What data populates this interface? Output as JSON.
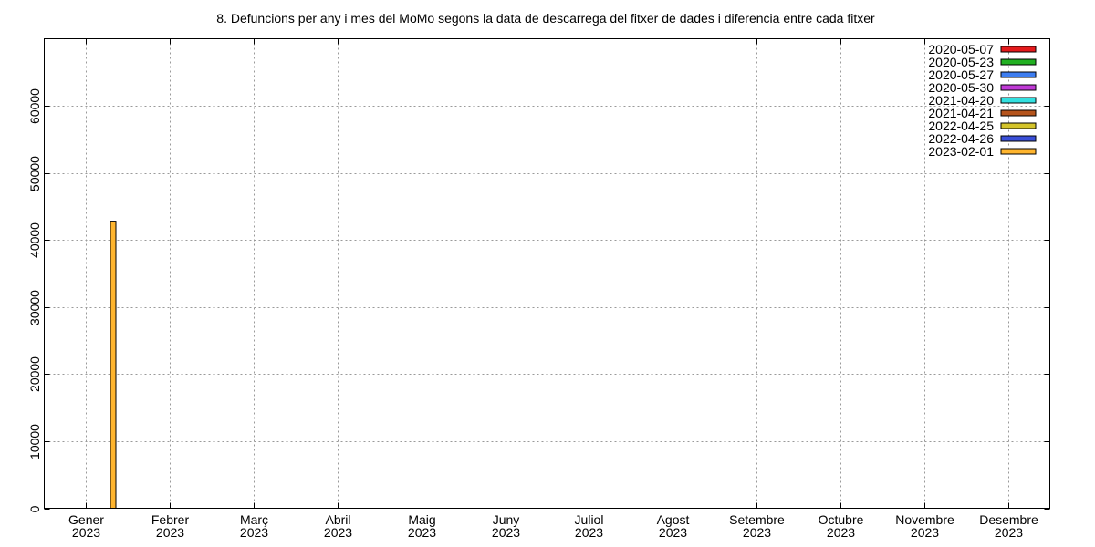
{
  "chart_data": {
    "type": "bar",
    "title": "8. Defuncions per any i mes del MoMo segons la data de descarrega del fitxer de dades i diferencia entre cada fitxer",
    "xlabel": "",
    "ylabel": "",
    "categories": [
      [
        "Gener",
        "2023"
      ],
      [
        "Febrer",
        "2023"
      ],
      [
        "Març",
        "2023"
      ],
      [
        "Abril",
        "2023"
      ],
      [
        "Maig",
        "2023"
      ],
      [
        "Juny",
        "2023"
      ],
      [
        "Juliol",
        "2023"
      ],
      [
        "Agost",
        "2023"
      ],
      [
        "Setembre",
        "2023"
      ],
      [
        "Octubre",
        "2023"
      ],
      [
        "Novembre",
        "2023"
      ],
      [
        "Desembre",
        "2023"
      ]
    ],
    "ylim": [
      0,
      70000
    ],
    "yticks": [
      0,
      10000,
      20000,
      30000,
      40000,
      50000,
      60000
    ],
    "grid": true,
    "legend_position": "top-right",
    "series": [
      {
        "name": "2020-05-07",
        "color": "#e41a1c",
        "values": [
          null,
          null,
          null,
          null,
          null,
          null,
          null,
          null,
          null,
          null,
          null,
          null
        ]
      },
      {
        "name": "2020-05-23",
        "color": "#22b022",
        "values": [
          null,
          null,
          null,
          null,
          null,
          null,
          null,
          null,
          null,
          null,
          null,
          null
        ]
      },
      {
        "name": "2020-05-27",
        "color": "#3d7df0",
        "values": [
          null,
          null,
          null,
          null,
          null,
          null,
          null,
          null,
          null,
          null,
          null,
          null
        ]
      },
      {
        "name": "2020-05-30",
        "color": "#c03ad6",
        "values": [
          null,
          null,
          null,
          null,
          null,
          null,
          null,
          null,
          null,
          null,
          null,
          null
        ]
      },
      {
        "name": "2021-04-20",
        "color": "#33e0e0",
        "values": [
          null,
          null,
          null,
          null,
          null,
          null,
          null,
          null,
          null,
          null,
          null,
          null
        ]
      },
      {
        "name": "2021-04-21",
        "color": "#b5541c",
        "values": [
          null,
          null,
          null,
          null,
          null,
          null,
          null,
          null,
          null,
          null,
          null,
          null
        ]
      },
      {
        "name": "2022-04-25",
        "color": "#d4c42a",
        "values": [
          null,
          null,
          null,
          null,
          null,
          null,
          null,
          null,
          null,
          null,
          null,
          null
        ]
      },
      {
        "name": "2022-04-26",
        "color": "#3a4fd8",
        "values": [
          null,
          null,
          null,
          null,
          null,
          null,
          null,
          null,
          null,
          null,
          null,
          null
        ]
      },
      {
        "name": "2023-02-01",
        "color": "#ffb52e",
        "values": [
          42800,
          null,
          null,
          null,
          null,
          null,
          null,
          null,
          null,
          null,
          null,
          null
        ]
      }
    ]
  }
}
